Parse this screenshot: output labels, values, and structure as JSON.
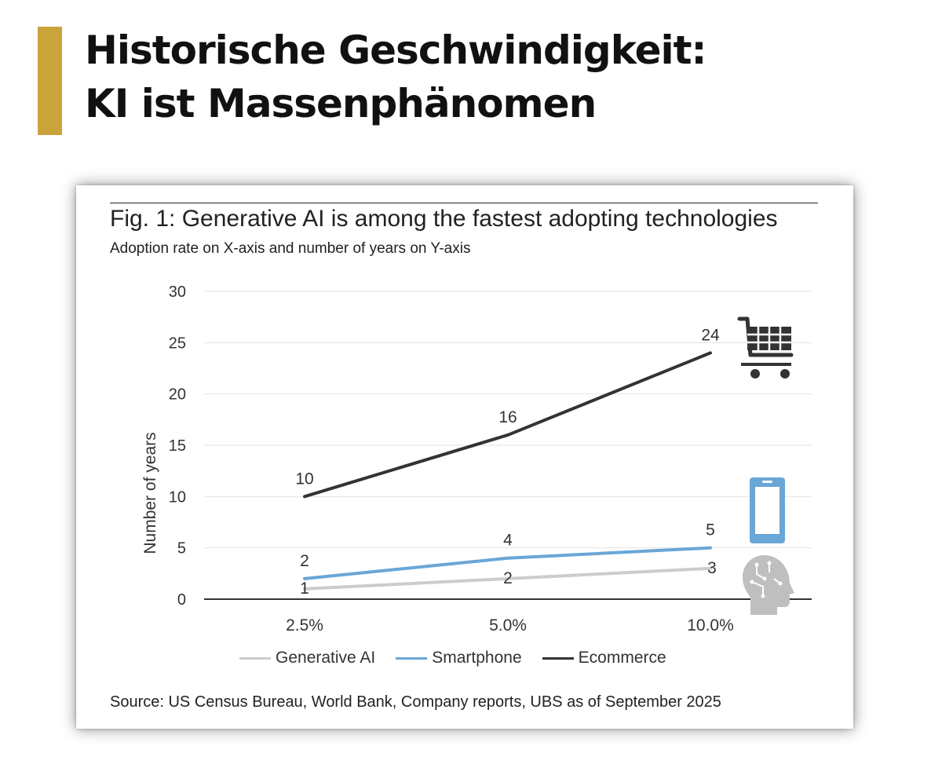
{
  "header": {
    "title_line1": "Historische Geschwindigkeit:",
    "title_line2": "KI ist Massenphänomen",
    "accent_color": "#c9a43a"
  },
  "figure": {
    "title": "Fig. 1: Generative AI is among the fastest adopting technologies",
    "subtitle": "Adoption rate on X-axis and number of years on Y-axis",
    "source": "Source: US Census Bureau, World Bank, Company reports, UBS as of September 2025"
  },
  "chart_data": {
    "type": "line",
    "categories": [
      "2.5%",
      "5.0%",
      "10.0%"
    ],
    "series": [
      {
        "name": "Generative AI",
        "values": [
          1,
          2,
          3
        ],
        "color": "#cccccc",
        "icon": "brain-circuit-icon"
      },
      {
        "name": "Smartphone",
        "values": [
          2,
          4,
          5
        ],
        "color": "#6aa6d6",
        "icon": "smartphone-icon"
      },
      {
        "name": "Ecommerce",
        "values": [
          10,
          16,
          24
        ],
        "color": "#333333",
        "icon": "shopping-cart-icon"
      }
    ],
    "xlabel": "",
    "ylabel": "Number of years",
    "ylim": [
      0,
      30
    ],
    "yticks": [
      0,
      5,
      10,
      15,
      20,
      25,
      30
    ],
    "grid": true,
    "legend_position": "bottom"
  }
}
